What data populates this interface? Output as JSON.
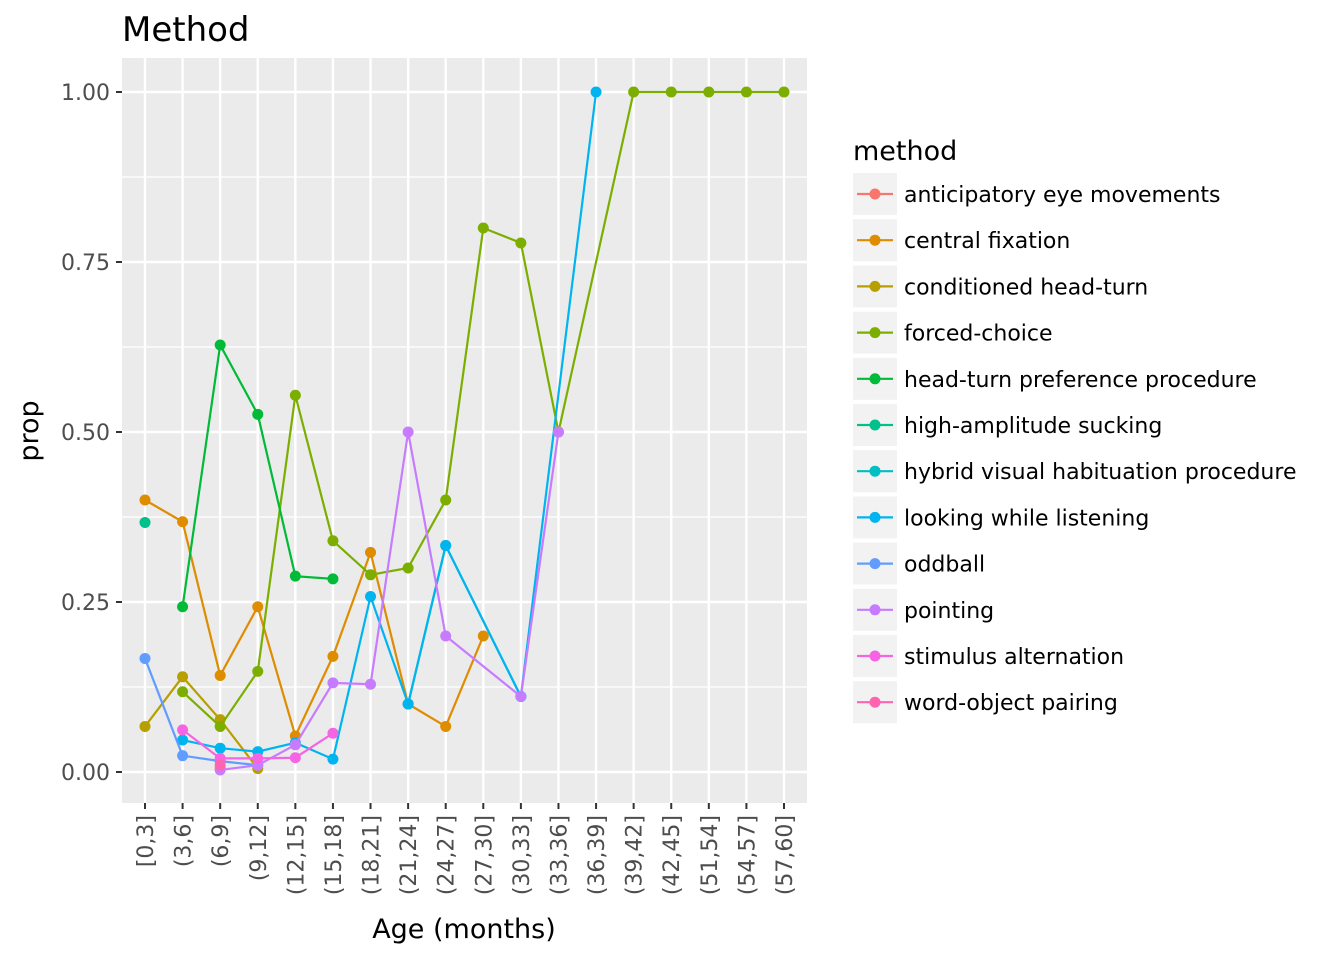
{
  "chart_data": {
    "type": "line",
    "title": "Method",
    "xlabel": "Age (months)",
    "ylabel": "prop",
    "ylim": [
      -0.05,
      1.05
    ],
    "y_ticks": [
      "0.00",
      "0.25",
      "0.50",
      "0.75",
      "1.00"
    ],
    "categories": [
      "[0,3]",
      "(3,6]",
      "(6,9]",
      "(9,12]",
      "(12,15]",
      "(15,18]",
      "(18,21]",
      "(21,24]",
      "(24,27]",
      "(27,30]",
      "(30,33]",
      "(33,36]",
      "(36,39]",
      "(39,42]",
      "(42,45]",
      "(51,54]",
      "(54,57]",
      "(57,60]"
    ],
    "grid": true,
    "legend_position": "right",
    "legend_title": "method",
    "series": [
      {
        "name": "anticipatory eye movements",
        "color": "#F8766D",
        "points": [
          [
            "(6,9]",
            0.005
          ]
        ]
      },
      {
        "name": "central fixation",
        "color": "#DE8C00",
        "points": [
          [
            "[0,3]",
            0.4
          ],
          [
            "(3,6]",
            0.368
          ],
          [
            "(6,9]",
            0.142
          ],
          [
            "(9,12]",
            0.243
          ],
          [
            "(12,15]",
            0.053
          ],
          [
            "(15,18]",
            0.17
          ],
          [
            "(18,21]",
            0.323
          ],
          [
            "(21,24]",
            0.1
          ],
          [
            "(24,27]",
            0.067
          ],
          [
            "(27,30]",
            0.2
          ]
        ]
      },
      {
        "name": "conditioned head-turn",
        "color": "#B79F00",
        "points": [
          [
            "[0,3]",
            0.067
          ],
          [
            "(3,6]",
            0.14
          ],
          [
            "(6,9]",
            0.077
          ],
          [
            "(9,12]",
            0.005
          ]
        ]
      },
      {
        "name": "forced-choice",
        "color": "#7CAE00",
        "points": [
          [
            "(3,6]",
            0.118
          ],
          [
            "(6,9]",
            0.067
          ],
          [
            "(9,12]",
            0.148
          ],
          [
            "(12,15]",
            0.554
          ],
          [
            "(15,18]",
            0.34
          ],
          [
            "(18,21]",
            0.29
          ],
          [
            "(21,24]",
            0.3
          ],
          [
            "(24,27]",
            0.4
          ],
          [
            "(27,30]",
            0.8
          ],
          [
            "(30,33]",
            0.778
          ],
          [
            "(33,36]",
            0.5
          ],
          [
            "(39,42]",
            1.0
          ],
          [
            "(42,45]",
            1.0
          ],
          [
            "(51,54]",
            1.0
          ],
          [
            "(54,57]",
            1.0
          ],
          [
            "(57,60]",
            1.0
          ]
        ]
      },
      {
        "name": "head-turn preference procedure",
        "color": "#00BA38",
        "points": [
          [
            "(3,6]",
            0.243
          ],
          [
            "(6,9]",
            0.628
          ],
          [
            "(9,12]",
            0.526
          ],
          [
            "(12,15]",
            0.288
          ],
          [
            "(15,18]",
            0.284
          ]
        ]
      },
      {
        "name": "high-amplitude sucking",
        "color": "#00C08B",
        "points": [
          [
            "[0,3]",
            0.367
          ]
        ]
      },
      {
        "name": "hybrid visual habituation procedure",
        "color": "#00BFC4",
        "points": [
          [
            "(21,24]",
            0.1
          ],
          [
            "(24,27]",
            0.333
          ],
          [
            "(30,33]",
            0.111
          ]
        ]
      },
      {
        "name": "looking while listening",
        "color": "#00B4F0",
        "points": [
          [
            "(3,6]",
            0.047
          ],
          [
            "(6,9]",
            0.035
          ],
          [
            "(9,12]",
            0.03
          ],
          [
            "(12,15]",
            0.043
          ],
          [
            "(15,18]",
            0.019
          ],
          [
            "(18,21]",
            0.258
          ],
          [
            "(21,24]",
            0.1
          ],
          [
            "(24,27]",
            0.333
          ],
          [
            "(30,33]",
            0.111
          ],
          [
            "(36,39]",
            1.0
          ]
        ]
      },
      {
        "name": "oddball",
        "color": "#619CFF",
        "points": [
          [
            "[0,3]",
            0.167
          ],
          [
            "(3,6]",
            0.024
          ],
          [
            "(6,9]",
            0.016
          ],
          [
            "(9,12]",
            0.01
          ]
        ]
      },
      {
        "name": "pointing",
        "color": "#C77CFF",
        "points": [
          [
            "(6,9]",
            0.003
          ],
          [
            "(9,12]",
            0.01
          ],
          [
            "(12,15]",
            0.04
          ],
          [
            "(15,18]",
            0.131
          ],
          [
            "(18,21]",
            0.129
          ],
          [
            "(21,24]",
            0.5
          ],
          [
            "(24,27]",
            0.2
          ],
          [
            "(30,33]",
            0.111
          ],
          [
            "(33,36]",
            0.5
          ]
        ]
      },
      {
        "name": "stimulus alternation",
        "color": "#F564E3",
        "points": [
          [
            "(3,6]",
            0.062
          ],
          [
            "(6,9]",
            0.02
          ],
          [
            "(9,12]",
            0.02
          ],
          [
            "(12,15]",
            0.021
          ],
          [
            "(15,18]",
            0.057
          ]
        ]
      },
      {
        "name": "word-object pairing",
        "color": "#FF64B0",
        "points": [
          [
            "(6,9]",
            0.01
          ]
        ]
      }
    ]
  }
}
